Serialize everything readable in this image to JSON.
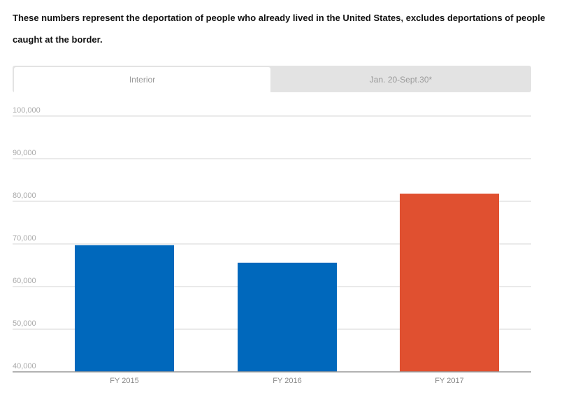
{
  "description": "These numbers represent the deportation of people who already lived in the United States, excludes deportations of people caught at the border.",
  "tabs": [
    {
      "label": "Interior",
      "active": true
    },
    {
      "label": "Jan. 20-Sept.30*",
      "active": false
    }
  ],
  "chart_data": {
    "type": "bar",
    "title": "",
    "xlabel": "",
    "ylabel": "",
    "categories": [
      "FY 2015",
      "FY 2016",
      "FY 2017"
    ],
    "values": [
      69700,
      65600,
      81800
    ],
    "colors": [
      "#0068bc",
      "#0068bc",
      "#e05030"
    ],
    "ylim": [
      40000,
      100000
    ],
    "yticks": [
      "40,000",
      "50,000",
      "60,000",
      "70,000",
      "80,000",
      "90,000",
      "100,000"
    ],
    "ytick_values": [
      40000,
      50000,
      60000,
      70000,
      80000,
      90000,
      100000
    ],
    "grid": true
  }
}
